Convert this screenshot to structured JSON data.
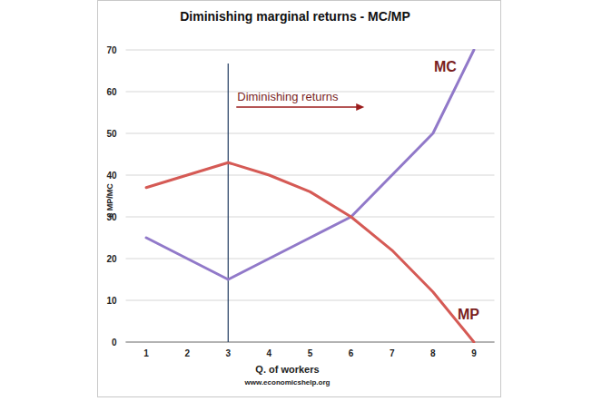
{
  "chart_data": {
    "type": "line",
    "title": "Diminishing marginal returns - MC/MP",
    "x_label": "Q. of workers",
    "y_label": "£ MP/MC",
    "source": "www.economicshelp.org",
    "categories": [
      "1",
      "2",
      "3",
      "4",
      "5",
      "6",
      "7",
      "8",
      "9"
    ],
    "series": [
      {
        "name": "MC",
        "color": "#9179c9",
        "values": [
          25,
          20,
          15,
          20,
          25,
          30,
          40,
          50,
          70
        ]
      },
      {
        "name": "MP",
        "color": "#d55a55",
        "values": [
          37,
          40,
          43,
          40,
          36,
          30,
          22,
          12,
          0
        ]
      }
    ],
    "ylim": [
      0,
      70
    ],
    "yticks": [
      0,
      10,
      20,
      30,
      40,
      50,
      60,
      70
    ],
    "grid": true,
    "annotations": [
      {
        "text": "Diminishing returns",
        "x": "3"
      }
    ]
  }
}
